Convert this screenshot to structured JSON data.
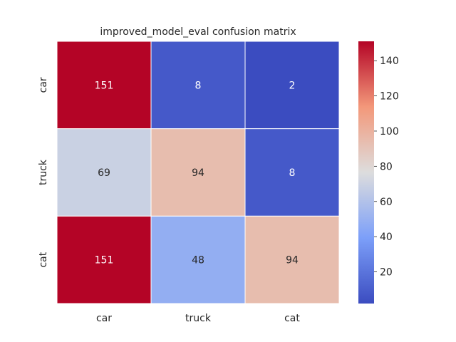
{
  "chart_data": {
    "type": "heatmap",
    "title": "improved_model_eval confusion matrix",
    "x_categories": [
      "car",
      "truck",
      "cat"
    ],
    "y_categories": [
      "car",
      "truck",
      "cat"
    ],
    "values": [
      [
        151,
        8,
        2
      ],
      [
        69,
        94,
        8
      ],
      [
        151,
        48,
        94
      ]
    ],
    "colormap": "coolwarm",
    "colorbar": {
      "min": 2,
      "max": 151,
      "ticks": [
        20,
        40,
        60,
        80,
        100,
        120,
        140
      ]
    },
    "annotations": true,
    "grid": false
  }
}
